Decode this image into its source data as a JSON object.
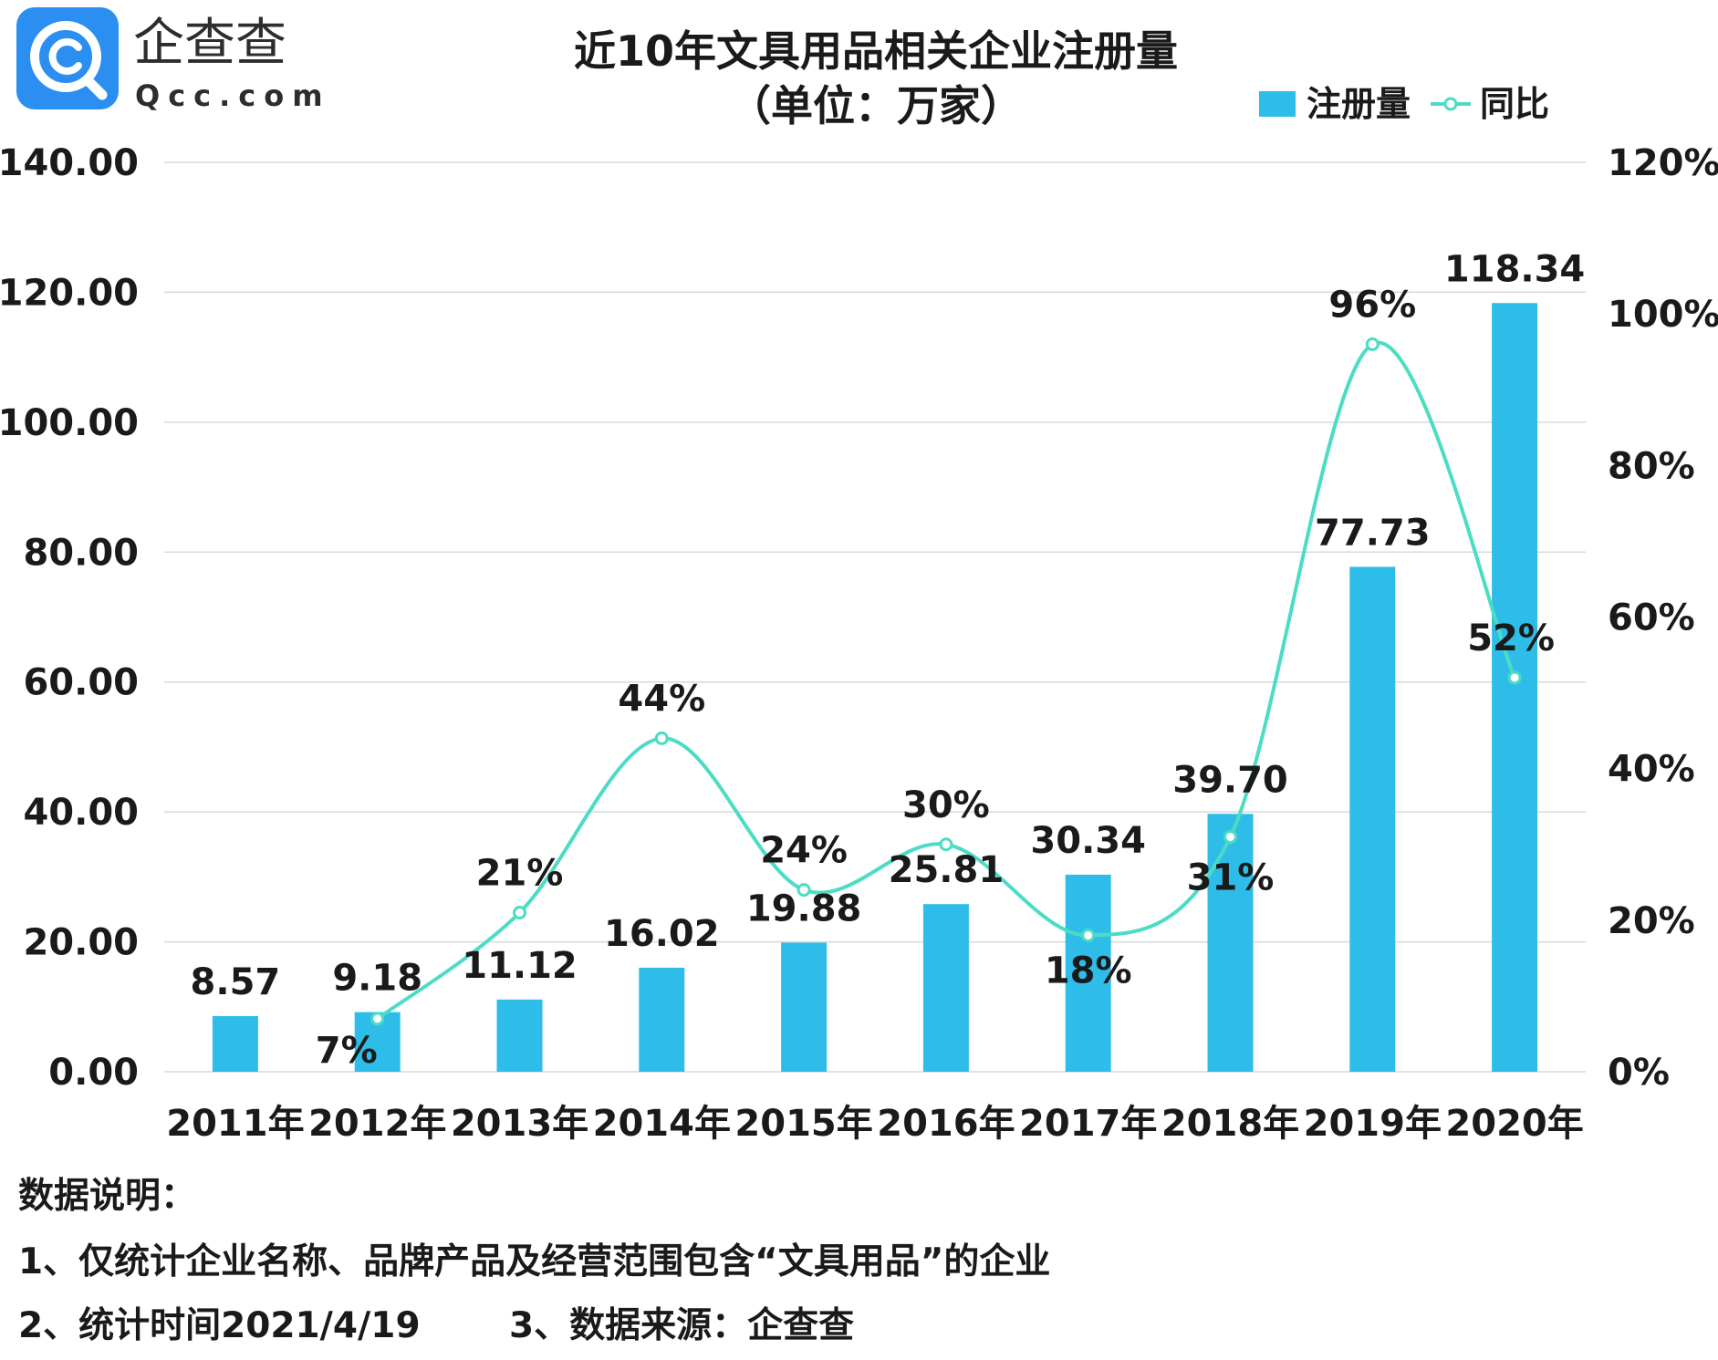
{
  "logo": {
    "name": "企查查",
    "domain": "Qcc.com",
    "icon": "magnifier-c-icon",
    "color": "#2a8ff0"
  },
  "chart_data": {
    "type": "bar",
    "title": "近10年文具用品相关企业注册量",
    "subtitle": "（单位：万家）",
    "categories": [
      "2011年",
      "2012年",
      "2013年",
      "2014年",
      "2015年",
      "2016年",
      "2017年",
      "2018年",
      "2019年",
      "2020年"
    ],
    "series": [
      {
        "name": "注册量",
        "type": "bar",
        "axis": "left",
        "color": "#2ebde8",
        "values": [
          8.57,
          9.18,
          11.12,
          16.02,
          19.88,
          25.81,
          30.34,
          39.7,
          77.73,
          118.34
        ],
        "labels": [
          "8.57",
          "9.18",
          "11.12",
          "16.02",
          "19.88",
          "25.81",
          "30.34",
          "39.70",
          "77.73",
          "118.34"
        ]
      },
      {
        "name": "同比",
        "type": "line",
        "axis": "right",
        "smooth": true,
        "color": "#4cdcc4",
        "values": [
          null,
          7,
          21,
          44,
          24,
          30,
          18,
          31,
          96,
          52
        ],
        "labels": [
          "",
          "7%",
          "21%",
          "44%",
          "24%",
          "30%",
          "18%",
          "31%",
          "96%",
          "52%"
        ]
      }
    ],
    "left_axis": {
      "ylim": [
        0,
        140
      ],
      "ticks": [
        0,
        20,
        40,
        60,
        80,
        100,
        120,
        140
      ],
      "tick_labels": [
        "0.00",
        "20.00",
        "40.00",
        "60.00",
        "80.00",
        "100.00",
        "120.00",
        "140.00"
      ]
    },
    "right_axis": {
      "ylim": [
        0,
        120
      ],
      "ticks": [
        0,
        20,
        40,
        60,
        80,
        100,
        120
      ],
      "tick_labels": [
        "0%",
        "20%",
        "40%",
        "60%",
        "80%",
        "100%",
        "120%"
      ]
    },
    "grid": true,
    "grid_color": "#d9d9d9",
    "legend": {
      "placement": "top-right",
      "entries": [
        "注册量",
        "同比"
      ]
    }
  },
  "notes": {
    "heading": "数据说明：",
    "line1": "1、仅统计企业名称、品牌产品及经营范围包含“文具用品”的企业",
    "line2a": "2、统计时间2021/4/19",
    "line2b": "3、数据来源：企查查"
  }
}
